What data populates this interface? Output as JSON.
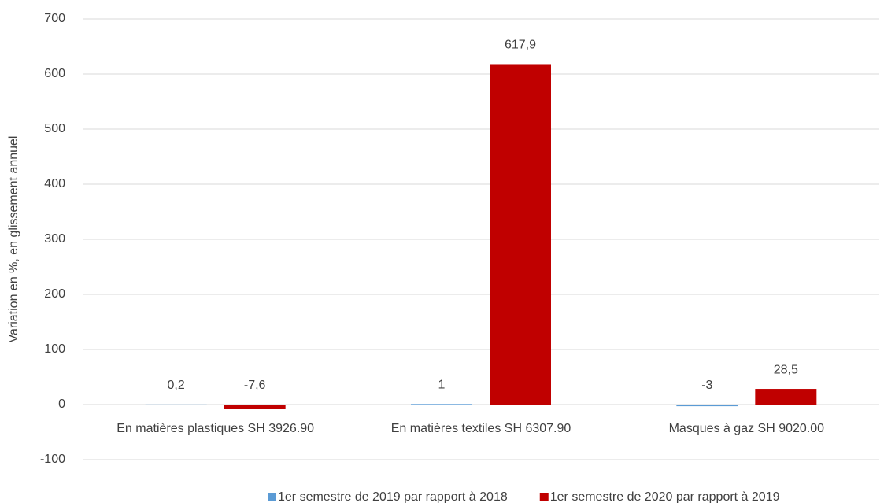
{
  "chart_data": {
    "type": "bar",
    "y_label": "Variation en %, en glissement annuel",
    "categories": [
      "En matières plastiques SH 3926.90",
      "En matières textiles SH 6307.90",
      "Masques à gaz SH 9020.00"
    ],
    "series": [
      {
        "name": "1er semestre de 2019 par rapport à 2018",
        "color": "#5b9bd5",
        "values": [
          0.2,
          1,
          -3
        ],
        "value_labels": [
          "0,2",
          "1",
          "-3"
        ]
      },
      {
        "name": "1er semestre de 2020 par rapport à 2019",
        "color": "#c00000",
        "values": [
          -7.6,
          617.9,
          28.5
        ],
        "value_labels": [
          "-7,6",
          "617,9",
          "28,5"
        ]
      }
    ],
    "ylim": [
      -100,
      700
    ],
    "yticks": [
      -100,
      0,
      100,
      200,
      300,
      400,
      500,
      600,
      700
    ],
    "grid": true,
    "legend": "bottom"
  }
}
